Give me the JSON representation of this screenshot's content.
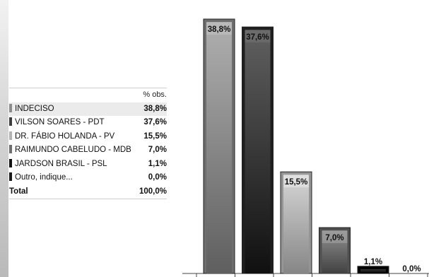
{
  "table": {
    "column_header": "% obs.",
    "rows": [
      {
        "label": "INDECISO",
        "value": "38,8%",
        "color": "#8c8c8c"
      },
      {
        "label": "VILSON SOARES - PDT",
        "value": "37,6%",
        "color": "#3d3d3d"
      },
      {
        "label": "DR. FÁBIO HOLANDA - PV",
        "value": "15,5%",
        "color": "#b3b3b3"
      },
      {
        "label": "RAIMUNDO CABELUDO - MDB",
        "value": "7,0%",
        "color": "#6e6e6e"
      },
      {
        "label": "JARDSON BRASIL - PSL",
        "value": "1,1%",
        "color": "#111111"
      },
      {
        "label": "Outro, indique...",
        "value": "0,0%",
        "color": "#1a1a1a"
      }
    ],
    "total_label": "Total",
    "total_value": "100,0%"
  },
  "chart_data": {
    "type": "bar",
    "categories": [
      "INDECISO",
      "VILSON SOARES - PDT",
      "DR. FÁBIO HOLANDA - PV",
      "RAIMUNDO CABELUDO - MDB",
      "JARDSON BRASIL - PSL",
      "Outro, indique..."
    ],
    "values": [
      38.8,
      37.6,
      15.5,
      7.0,
      1.1,
      0.0
    ],
    "data_labels": [
      "38,8%",
      "37,6%",
      "15,5%",
      "7,0%",
      "1,1%",
      "0,0%"
    ],
    "colors": [
      "#8c8c8c",
      "#3d3d3d",
      "#b3b3b3",
      "#6e6e6e",
      "#111111",
      "#1a1a1a"
    ],
    "ylim": [
      0,
      38.8
    ],
    "grid": false,
    "legend": "left table"
  }
}
